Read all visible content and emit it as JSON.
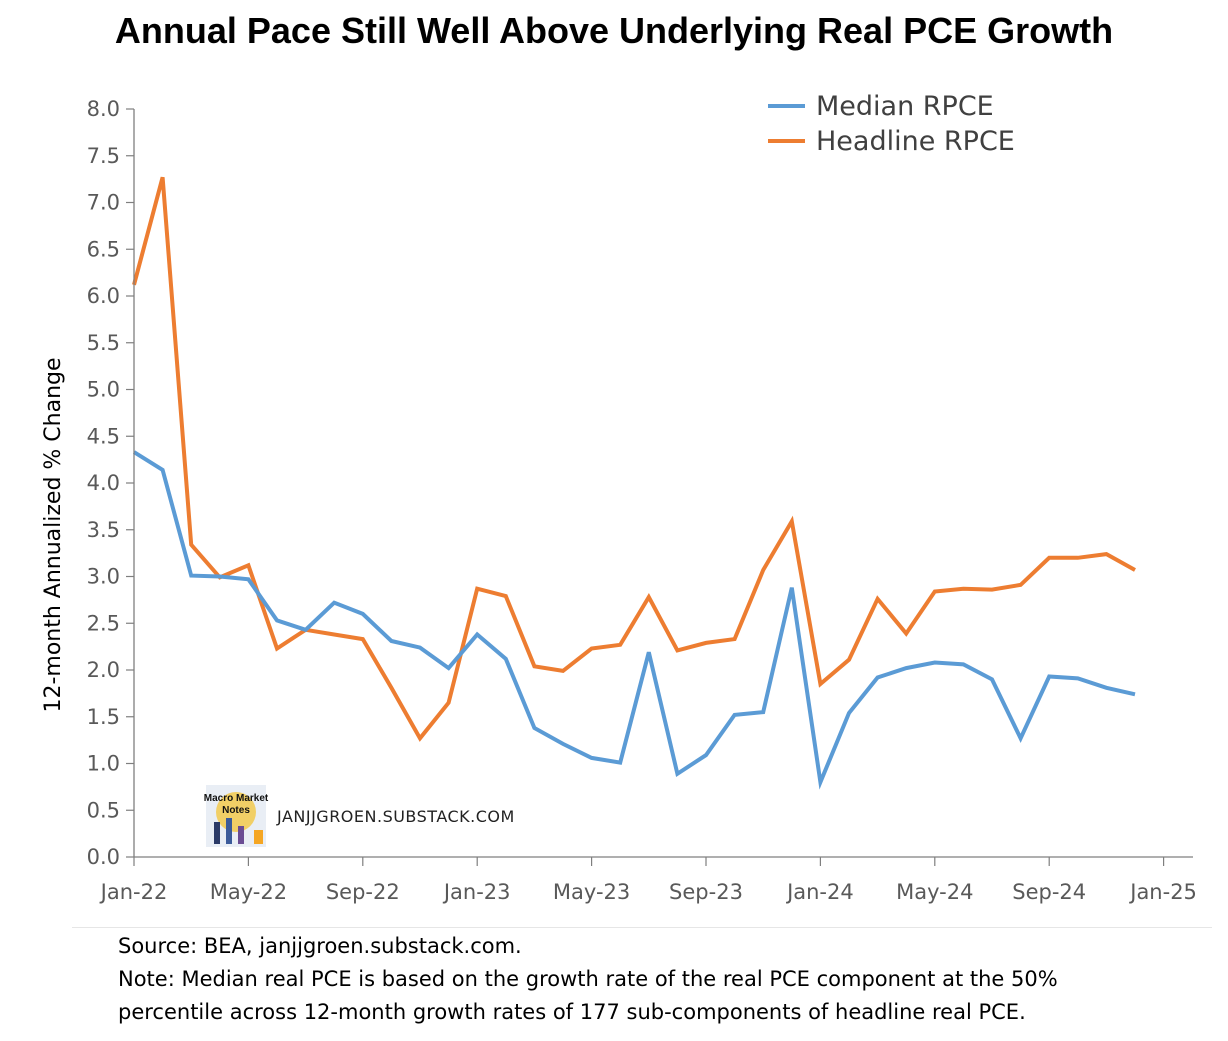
{
  "title": "Annual Pace Still Well Above Underlying Real PCE Growth",
  "chart_data": {
    "type": "line",
    "ylabel": "12-month Annualized % Change",
    "ylim": [
      0,
      8
    ],
    "yticks": [
      "0.0",
      "0.5",
      "1.0",
      "1.5",
      "2.0",
      "2.5",
      "3.0",
      "3.5",
      "4.0",
      "4.5",
      "5.0",
      "5.5",
      "6.0",
      "6.5",
      "7.0",
      "7.5",
      "8.0"
    ],
    "xtick_labels": [
      "Jan-22",
      "May-22",
      "Sep-22",
      "Jan-23",
      "May-23",
      "Sep-23",
      "Jan-24",
      "May-24",
      "Sep-24",
      "Jan-25"
    ],
    "legend_position": "top-right",
    "months": [
      "Jan-22",
      "Feb-22",
      "Mar-22",
      "Apr-22",
      "May-22",
      "Jun-22",
      "Jul-22",
      "Aug-22",
      "Sep-22",
      "Oct-22",
      "Nov-22",
      "Dec-22",
      "Jan-23",
      "Feb-23",
      "Mar-23",
      "Apr-23",
      "May-23",
      "Jun-23",
      "Jul-23",
      "Aug-23",
      "Sep-23",
      "Oct-23",
      "Nov-23",
      "Dec-23",
      "Jan-24",
      "Feb-24",
      "Mar-24",
      "Apr-24",
      "May-24",
      "Jun-24",
      "Jul-24",
      "Aug-24",
      "Sep-24",
      "Oct-24",
      "Nov-24",
      "Dec-24"
    ],
    "series": [
      {
        "name": "Median RPCE",
        "color": "#5b9bd5",
        "values": [
          4.33,
          4.14,
          3.01,
          3.0,
          2.97,
          2.53,
          2.43,
          2.72,
          2.6,
          2.31,
          2.24,
          2.02,
          2.38,
          2.12,
          1.38,
          1.21,
          1.06,
          1.01,
          2.19,
          0.89,
          1.09,
          1.52,
          1.55,
          2.88,
          0.8,
          1.54,
          1.92,
          2.02,
          2.08,
          2.06,
          1.9,
          1.27,
          1.93,
          1.91,
          1.81,
          1.74
        ]
      },
      {
        "name": "Headline RPCE",
        "color": "#ed7d31",
        "values": [
          6.12,
          7.27,
          3.34,
          2.99,
          3.12,
          2.23,
          2.43,
          2.38,
          2.33,
          1.81,
          1.27,
          1.65,
          2.87,
          2.79,
          2.04,
          1.99,
          2.23,
          2.27,
          2.78,
          2.21,
          2.29,
          2.33,
          3.07,
          3.59,
          1.85,
          2.11,
          2.76,
          2.39,
          2.84,
          2.87,
          2.86,
          2.91,
          3.2,
          3.2,
          3.24,
          3.07
        ]
      }
    ]
  },
  "watermark": {
    "logo_text": "Macro Market Notes",
    "site": "JANJJGROEN.SUBSTACK.COM"
  },
  "notes": {
    "source": "Source: BEA, janjjgroen.substack.com.",
    "note_line1": "Note: Median real PCE is based on the growth rate of the real PCE component at the 50%",
    "note_line2": "percentile across 12-month growth rates of 177 sub-components of headline real PCE."
  }
}
